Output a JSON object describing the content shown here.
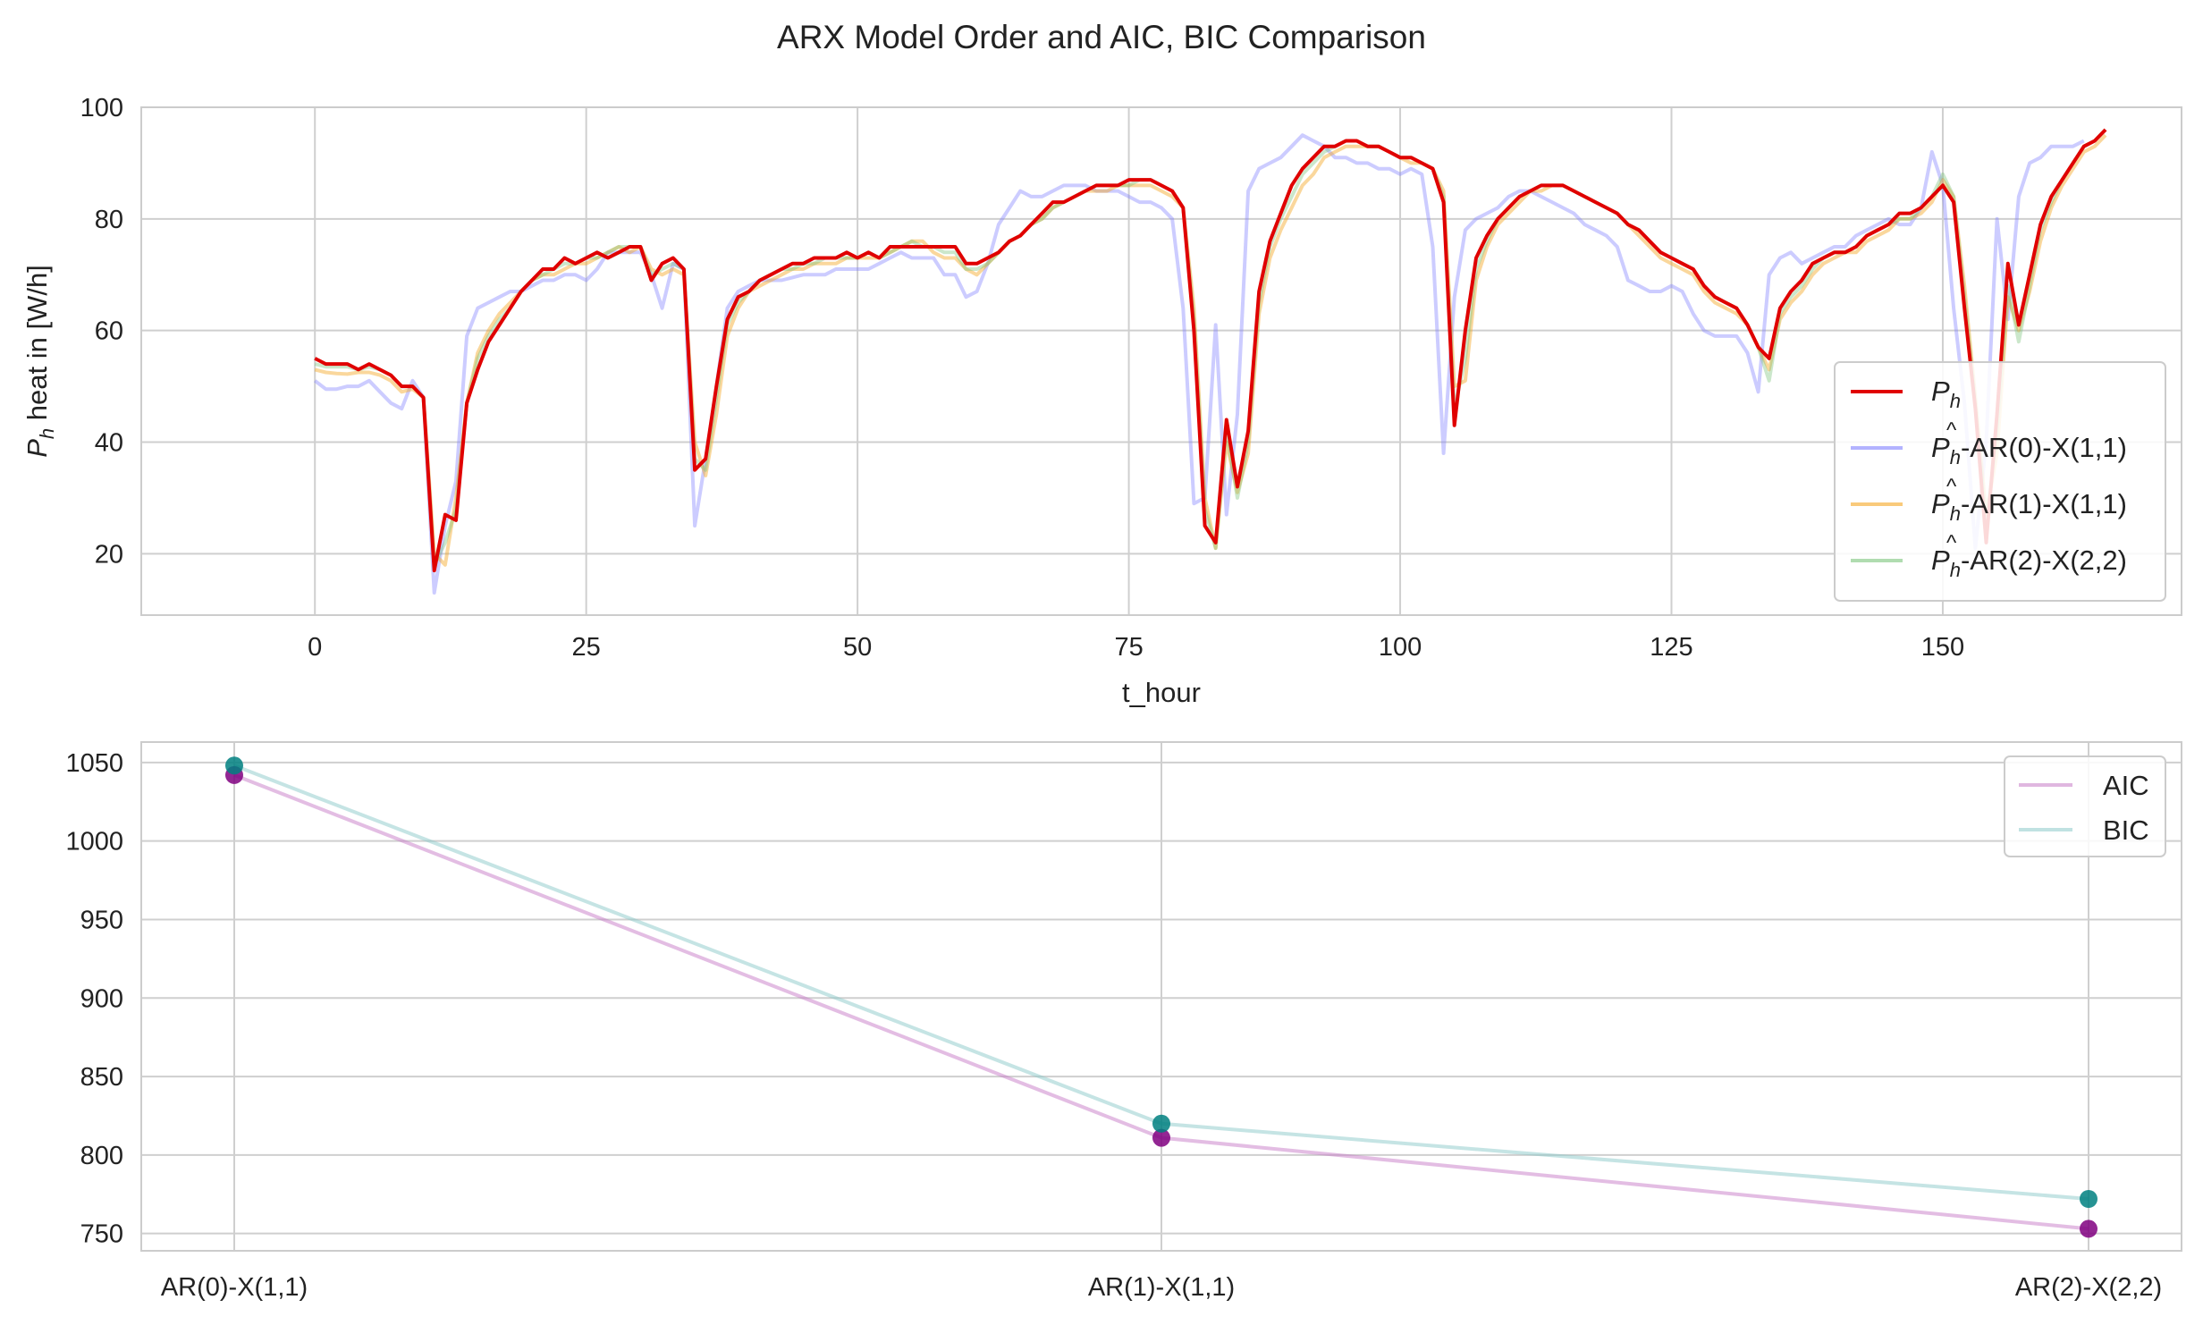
{
  "figure_title": "ARX Model Order and AIC, BIC Comparison",
  "chart_data": [
    {
      "type": "line",
      "title": "",
      "xlabel": "t_hour",
      "ylabel_main": "P",
      "ylabel_sub": "h",
      "ylabel_rest": " heat in [W/h]",
      "xlim": [
        -16,
        172
      ],
      "ylim": [
        9,
        100
      ],
      "xticks": [
        0,
        25,
        50,
        75,
        100,
        125,
        150
      ],
      "yticks": [
        20,
        40,
        60,
        80,
        100
      ],
      "grid": true,
      "legend_position": "lower right",
      "x_start": 0,
      "series": [
        {
          "name": "P_h",
          "legend_main": "P",
          "legend_sub": "h",
          "legend_hat": "",
          "legend_suffix": "",
          "color": "#e00000",
          "opacity": 1.0,
          "width": 4,
          "values": [
            55,
            54,
            54,
            54,
            53,
            54,
            53,
            52,
            50,
            50,
            48,
            17,
            27,
            26,
            47,
            53,
            58,
            61,
            64,
            67,
            69,
            71,
            71,
            73,
            72,
            73,
            74,
            73,
            74,
            75,
            75,
            69,
            72,
            73,
            71,
            35,
            37,
            50,
            62,
            66,
            67,
            69,
            70,
            71,
            72,
            72,
            73,
            73,
            73,
            74,
            73,
            74,
            73,
            75,
            75,
            75,
            75,
            75,
            75,
            75,
            72,
            72,
            73,
            74,
            76,
            77,
            79,
            81,
            83,
            83,
            84,
            85,
            86,
            86,
            86,
            87,
            87,
            87,
            86,
            85,
            82,
            60,
            25,
            22,
            44,
            32,
            42,
            67,
            76,
            81,
            86,
            89,
            91,
            93,
            93,
            94,
            94,
            93,
            93,
            92,
            91,
            91,
            90,
            89,
            83,
            43,
            60,
            73,
            77,
            80,
            82,
            84,
            85,
            86,
            86,
            86,
            85,
            84,
            83,
            82,
            81,
            79,
            78,
            76,
            74,
            73,
            72,
            71,
            68,
            66,
            65,
            64,
            61,
            57,
            55,
            64,
            67,
            69,
            72,
            73,
            74,
            74,
            75,
            77,
            78,
            79,
            81,
            81,
            82,
            84,
            86,
            83,
            64,
            46,
            22,
            45,
            72,
            61,
            70,
            79,
            84,
            87,
            90,
            93,
            94,
            96
          ]
        },
        {
          "name": "P_h-hat-AR(0)-X(1,1)",
          "legend_main": "P",
          "legend_sub": "h",
          "legend_hat": "^",
          "legend_suffix": "-AR(0)-X(1,1)",
          "color": "#8080ff",
          "opacity": 0.4,
          "width": 4,
          "values": [
            51,
            49.5,
            49.5,
            50,
            50,
            51,
            49,
            47,
            46,
            51,
            48,
            13,
            25,
            33,
            59,
            64,
            65,
            66,
            67,
            67,
            68,
            69,
            69,
            70,
            70,
            69,
            71,
            74,
            74,
            74,
            74,
            70,
            64,
            72,
            71,
            25,
            37,
            50,
            64,
            67,
            68,
            69,
            69,
            69,
            69.5,
            70,
            70,
            70,
            71,
            71,
            71,
            71,
            72,
            73,
            74,
            73,
            73,
            73,
            70,
            70,
            66,
            67,
            72,
            79,
            82,
            85,
            84,
            84,
            85,
            86,
            86,
            86,
            85,
            85,
            85,
            84,
            83,
            83,
            82,
            80,
            64,
            29,
            30,
            61,
            27,
            45,
            85,
            89,
            90,
            91,
            93,
            95,
            94,
            93,
            91,
            91,
            90,
            90,
            89,
            89,
            88,
            89,
            88,
            75,
            38,
            66,
            78,
            80,
            81,
            82,
            84,
            85,
            85,
            84,
            83,
            82,
            81,
            79,
            78,
            77,
            75,
            69,
            68,
            67,
            67,
            68,
            67,
            63,
            60,
            59,
            59,
            59,
            56,
            49,
            70,
            73,
            74,
            72,
            73,
            74,
            75,
            75,
            77,
            78,
            79,
            80,
            79,
            79,
            82,
            92,
            86,
            64,
            47,
            21,
            40,
            80,
            62,
            84,
            90,
            91,
            93,
            93,
            93,
            94
          ]
        },
        {
          "name": "P_h-hat-AR(1)-X(1,1)",
          "legend_main": "P",
          "legend_sub": "h",
          "legend_hat": "^",
          "legend_suffix": "-AR(1)-X(1,1)",
          "color": "#f5a623",
          "opacity": 0.45,
          "width": 4,
          "values": [
            53,
            52.5,
            52.3,
            52.2,
            52.5,
            52.5,
            52,
            51,
            49,
            49.5,
            48,
            20,
            18,
            30,
            47,
            56,
            60,
            63,
            65,
            67,
            69,
            70,
            70,
            71,
            72,
            72,
            73,
            74,
            75,
            74,
            75,
            71,
            70,
            71,
            70,
            40,
            34,
            45,
            59,
            64,
            67,
            68,
            69,
            70,
            71,
            71,
            72,
            72,
            72,
            73,
            73,
            73,
            73,
            74,
            75,
            76,
            76,
            74,
            73,
            73,
            71,
            70,
            72,
            74,
            76,
            77,
            79,
            80,
            82,
            83,
            84,
            85,
            85,
            85,
            86,
            86,
            86,
            86,
            85,
            84,
            82,
            64,
            30,
            21,
            40,
            31,
            38,
            63,
            73,
            78,
            82,
            86,
            88,
            91,
            92,
            93,
            93,
            93,
            93,
            92,
            91,
            90,
            90,
            89,
            85,
            50,
            51,
            69,
            75,
            79,
            81,
            83,
            85,
            85,
            86,
            86,
            85,
            84,
            83,
            82,
            81,
            79,
            77,
            75,
            73,
            72,
            71,
            70,
            67,
            65,
            64,
            63,
            61,
            57,
            53,
            62,
            65,
            67,
            70,
            72,
            73,
            74,
            74,
            76,
            77,
            78,
            80,
            80,
            81,
            83,
            87,
            84,
            68,
            48,
            27,
            38,
            66,
            60,
            67,
            76,
            82,
            86,
            89,
            92,
            93,
            95
          ]
        },
        {
          "name": "P_h-hat-AR(2)-X(2,2)",
          "legend_main": "P",
          "legend_sub": "h",
          "legend_hat": "^",
          "legend_suffix": "-AR(2)-X(2,2)",
          "color": "#7cc47c",
          "opacity": 0.4,
          "width": 4,
          "values": [
            54,
            53.5,
            53.5,
            53.5,
            53,
            53.5,
            53,
            52,
            50,
            50,
            48,
            18,
            22,
            28,
            47,
            55,
            59,
            62,
            64,
            67,
            69,
            70,
            71,
            72,
            72,
            73,
            73,
            74,
            75,
            75,
            75,
            70,
            71,
            72,
            71,
            37,
            35,
            48,
            61,
            65,
            67,
            69,
            70,
            71,
            71,
            72,
            72,
            73,
            73,
            73,
            73,
            74,
            73,
            74,
            75,
            76,
            75,
            75,
            74,
            74,
            71,
            71,
            72,
            74,
            76,
            77,
            79,
            80,
            82,
            83,
            84,
            85,
            86,
            86,
            86,
            86,
            87,
            87,
            86,
            85,
            82,
            62,
            28,
            21,
            42,
            30,
            40,
            65,
            75,
            80,
            84,
            88,
            90,
            92,
            93,
            94,
            94,
            93,
            93,
            92,
            91,
            91,
            90,
            89,
            84,
            46,
            55,
            71,
            76,
            80,
            82,
            84,
            85,
            86,
            86,
            86,
            85,
            84,
            83,
            82,
            81,
            79,
            78,
            76,
            74,
            73,
            72,
            71,
            68,
            66,
            65,
            64,
            61,
            57,
            51,
            63,
            66,
            68,
            71,
            73,
            74,
            74,
            75,
            77,
            78,
            79,
            80,
            80,
            82,
            84,
            88,
            84,
            66,
            47,
            25,
            42,
            68,
            58,
            68,
            78,
            83,
            87,
            90,
            93,
            94,
            96
          ]
        }
      ]
    },
    {
      "type": "line",
      "title": "",
      "xlabel": "",
      "ylabel": "",
      "categories": [
        "AR(0)-X(1,1)",
        "AR(1)-X(1,1)",
        "AR(2)-X(2,2)"
      ],
      "ylim": [
        739,
        1063
      ],
      "yticks": [
        750,
        800,
        850,
        900,
        950,
        1000,
        1050
      ],
      "grid": true,
      "legend_position": "upper right",
      "series": [
        {
          "name": "AIC",
          "line_color": "#c77cc7",
          "marker_color": "#800080",
          "values": [
            1042,
            811,
            753
          ]
        },
        {
          "name": "BIC",
          "line_color": "#8ccaca",
          "marker_color": "#008080",
          "values": [
            1048,
            820,
            772
          ]
        }
      ]
    }
  ]
}
